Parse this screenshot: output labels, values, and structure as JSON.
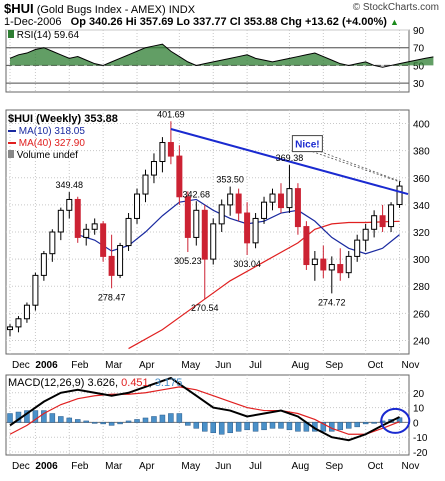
{
  "header": {
    "symbol": "$HUI",
    "index_name": "(Gold Bugs Index - AMEX)",
    "exchange": "INDX",
    "date": "1-Dec-2006",
    "open_label": "Op",
    "open": "340.26",
    "high_label": "Hi",
    "high": "357.69",
    "low_label": "Lo",
    "low": "337.77",
    "close_label": "Cl",
    "close": "353.88",
    "change_label": "Chg",
    "change": "+13.62 (+4.00%)",
    "change_icon": "up-triangle-icon",
    "watermark": "© StockCharts.com"
  },
  "colors": {
    "up": "#ffffff",
    "down": "#cc2233",
    "ma10": "#1a2aa0",
    "ma40": "#e02020",
    "trendline": "#1a2ad0",
    "rsi_fill": "#2e7d32",
    "macd": "#000000",
    "signal": "#e02020",
    "hist": "#4a90c8",
    "grid": "#c8c8c8"
  },
  "chart_data": [
    {
      "type": "line",
      "panel": "RSI",
      "legend": "RSI(14) 59.64",
      "ylim": [
        20,
        90
      ],
      "yticks": [
        30,
        50,
        70,
        90
      ],
      "reference_lines": [
        30,
        50,
        70
      ],
      "x": [
        0,
        1,
        2,
        3,
        4,
        5,
        6,
        7,
        8,
        9,
        10,
        11,
        12,
        13,
        14,
        15,
        16,
        17,
        18,
        19,
        20,
        21,
        22,
        23,
        24,
        25,
        26,
        27,
        28,
        29,
        30,
        31,
        32,
        33,
        34,
        35,
        36,
        37,
        38,
        39,
        40,
        41,
        42,
        43,
        44,
        45,
        46,
        47,
        48,
        49,
        50
      ],
      "values": [
        58,
        62,
        64,
        68,
        70,
        66,
        62,
        58,
        60,
        56,
        52,
        50,
        54,
        58,
        62,
        66,
        70,
        72,
        74,
        66,
        60,
        54,
        50,
        52,
        54,
        56,
        58,
        60,
        62,
        58,
        56,
        54,
        56,
        58,
        60,
        62,
        64,
        60,
        56,
        52,
        50,
        52,
        54,
        50,
        48,
        50,
        52,
        54,
        56,
        58,
        59.64
      ]
    },
    {
      "type": "candlestick",
      "panel": "price",
      "legend": [
        "$HUI (Weekly) 353.88",
        "MA(10) 318.05",
        "MA(40) 327.90",
        "Volume undef"
      ],
      "ylim": [
        230,
        410
      ],
      "yticks": [
        240,
        260,
        280,
        300,
        320,
        340,
        360,
        380,
        400
      ],
      "xlabels": [
        "Dec",
        "2006",
        "Feb",
        "Mar",
        "Apr",
        "May",
        "Jun",
        "Jul",
        "Aug",
        "Sep",
        "Oct",
        "Nov"
      ],
      "candles": [
        {
          "w": 0,
          "o": 248,
          "h": 252,
          "l": 243,
          "c": 250
        },
        {
          "w": 1,
          "o": 250,
          "h": 258,
          "l": 246,
          "c": 256
        },
        {
          "w": 2,
          "o": 256,
          "h": 268,
          "l": 253,
          "c": 266
        },
        {
          "w": 3,
          "o": 266,
          "h": 290,
          "l": 262,
          "c": 288
        },
        {
          "w": 4,
          "o": 288,
          "h": 306,
          "l": 284,
          "c": 304
        },
        {
          "w": 5,
          "o": 304,
          "h": 322,
          "l": 298,
          "c": 320
        },
        {
          "w": 6,
          "o": 320,
          "h": 338,
          "l": 314,
          "c": 336
        },
        {
          "w": 7,
          "o": 336,
          "h": 349.48,
          "l": 330,
          "c": 344
        },
        {
          "w": 8,
          "o": 344,
          "h": 346,
          "l": 312,
          "c": 316
        },
        {
          "w": 9,
          "o": 316,
          "h": 326,
          "l": 310,
          "c": 322
        },
        {
          "w": 10,
          "o": 322,
          "h": 330,
          "l": 318,
          "c": 326
        },
        {
          "w": 11,
          "o": 326,
          "h": 328,
          "l": 298,
          "c": 302
        },
        {
          "w": 12,
          "o": 302,
          "h": 318,
          "l": 278.47,
          "c": 288
        },
        {
          "w": 13,
          "o": 288,
          "h": 312,
          "l": 286,
          "c": 310
        },
        {
          "w": 14,
          "o": 310,
          "h": 334,
          "l": 306,
          "c": 330
        },
        {
          "w": 15,
          "o": 330,
          "h": 352,
          "l": 326,
          "c": 348
        },
        {
          "w": 16,
          "o": 348,
          "h": 366,
          "l": 342,
          "c": 362
        },
        {
          "w": 17,
          "o": 362,
          "h": 378,
          "l": 356,
          "c": 372
        },
        {
          "w": 18,
          "o": 372,
          "h": 390,
          "l": 364,
          "c": 386
        },
        {
          "w": 19,
          "o": 386,
          "h": 401.69,
          "l": 370,
          "c": 376
        },
        {
          "w": 20,
          "o": 376,
          "h": 384,
          "l": 340,
          "c": 346
        },
        {
          "w": 21,
          "o": 346,
          "h": 350,
          "l": 305.23,
          "c": 316
        },
        {
          "w": 22,
          "o": 316,
          "h": 342.68,
          "l": 310,
          "c": 336
        },
        {
          "w": 23,
          "o": 336,
          "h": 340,
          "l": 270.54,
          "c": 300
        },
        {
          "w": 24,
          "o": 300,
          "h": 330,
          "l": 296,
          "c": 326
        },
        {
          "w": 25,
          "o": 326,
          "h": 344,
          "l": 320,
          "c": 340
        },
        {
          "w": 26,
          "o": 340,
          "h": 353.5,
          "l": 332,
          "c": 348
        },
        {
          "w": 27,
          "o": 348,
          "h": 352,
          "l": 328,
          "c": 334
        },
        {
          "w": 28,
          "o": 334,
          "h": 342,
          "l": 303.04,
          "c": 312
        },
        {
          "w": 29,
          "o": 312,
          "h": 334,
          "l": 308,
          "c": 330
        },
        {
          "w": 30,
          "o": 330,
          "h": 346,
          "l": 326,
          "c": 342
        },
        {
          "w": 31,
          "o": 342,
          "h": 352,
          "l": 336,
          "c": 348
        },
        {
          "w": 32,
          "o": 348,
          "h": 356,
          "l": 334,
          "c": 338
        },
        {
          "w": 33,
          "o": 338,
          "h": 369.38,
          "l": 334,
          "c": 352
        },
        {
          "w": 34,
          "o": 352,
          "h": 356,
          "l": 318,
          "c": 324
        },
        {
          "w": 35,
          "o": 324,
          "h": 328,
          "l": 292,
          "c": 296
        },
        {
          "w": 36,
          "o": 296,
          "h": 306,
          "l": 284,
          "c": 300
        },
        {
          "w": 37,
          "o": 300,
          "h": 310,
          "l": 286,
          "c": 292
        },
        {
          "w": 38,
          "o": 292,
          "h": 302,
          "l": 274.72,
          "c": 296
        },
        {
          "w": 39,
          "o": 296,
          "h": 308,
          "l": 284,
          "c": 290
        },
        {
          "w": 40,
          "o": 290,
          "h": 306,
          "l": 286,
          "c": 302
        },
        {
          "w": 41,
          "o": 302,
          "h": 318,
          "l": 298,
          "c": 314
        },
        {
          "w": 42,
          "o": 314,
          "h": 326,
          "l": 306,
          "c": 322
        },
        {
          "w": 43,
          "o": 322,
          "h": 336,
          "l": 316,
          "c": 332
        },
        {
          "w": 44,
          "o": 332,
          "h": 340,
          "l": 320,
          "c": 324
        },
        {
          "w": 45,
          "o": 324,
          "h": 342,
          "l": 320,
          "c": 340
        },
        {
          "w": 46,
          "o": 340.26,
          "h": 357.69,
          "l": 337.77,
          "c": 353.88
        }
      ],
      "ma10": [
        [
          8,
          318
        ],
        [
          10,
          314
        ],
        [
          12,
          306
        ],
        [
          14,
          310
        ],
        [
          16,
          320
        ],
        [
          18,
          332
        ],
        [
          20,
          342
        ],
        [
          22,
          344
        ],
        [
          24,
          336
        ],
        [
          26,
          330
        ],
        [
          28,
          326
        ],
        [
          30,
          328
        ],
        [
          32,
          334
        ],
        [
          34,
          336
        ],
        [
          36,
          328
        ],
        [
          38,
          316
        ],
        [
          40,
          308
        ],
        [
          42,
          304
        ],
        [
          44,
          308
        ],
        [
          46,
          318.05
        ]
      ],
      "ma40": [
        [
          14,
          234
        ],
        [
          18,
          248
        ],
        [
          22,
          266
        ],
        [
          26,
          284
        ],
        [
          30,
          298
        ],
        [
          34,
          312
        ],
        [
          36,
          322
        ],
        [
          38,
          326
        ],
        [
          40,
          327
        ],
        [
          42,
          327
        ],
        [
          44,
          327.5
        ],
        [
          46,
          327.9
        ]
      ],
      "trendline": [
        [
          19,
          396
        ],
        [
          47,
          348
        ]
      ],
      "annotations": [
        {
          "text": "401.69",
          "w": 19,
          "y": 401.69
        },
        {
          "text": "349.48",
          "w": 7,
          "y": 349.48
        },
        {
          "text": "342.68",
          "w": 22,
          "y": 342.68
        },
        {
          "text": "353.50",
          "w": 26,
          "y": 353.5
        },
        {
          "text": "369.38",
          "w": 33,
          "y": 369.38
        },
        {
          "text": "278.47",
          "w": 12,
          "y": 278.47
        },
        {
          "text": "305.23",
          "w": 21,
          "y": 305.23
        },
        {
          "text": "303.04",
          "w": 28,
          "y": 303.04
        },
        {
          "text": "270.54",
          "w": 23,
          "y": 270.54
        },
        {
          "text": "274.72",
          "w": 38,
          "y": 274.72
        }
      ],
      "callout": "Nice!"
    },
    {
      "type": "line",
      "panel": "MACD",
      "legend_name": "MACD(12,26,9)",
      "legend_values": [
        "3.626",
        "0.451",
        "3.175"
      ],
      "ylim": [
        -22,
        32
      ],
      "yticks": [
        -20,
        -10,
        0,
        10,
        20
      ],
      "macd": [
        [
          0,
          -2
        ],
        [
          2,
          6
        ],
        [
          4,
          14
        ],
        [
          6,
          20
        ],
        [
          8,
          22
        ],
        [
          10,
          20
        ],
        [
          12,
          18
        ],
        [
          14,
          20
        ],
        [
          16,
          24
        ],
        [
          18,
          28
        ],
        [
          19,
          30
        ],
        [
          20,
          26
        ],
        [
          22,
          18
        ],
        [
          24,
          10
        ],
        [
          26,
          8
        ],
        [
          28,
          4
        ],
        [
          30,
          6
        ],
        [
          32,
          8
        ],
        [
          34,
          4
        ],
        [
          36,
          -4
        ],
        [
          38,
          -10
        ],
        [
          40,
          -12
        ],
        [
          42,
          -8
        ],
        [
          44,
          -2
        ],
        [
          46,
          3.626
        ]
      ],
      "signal": [
        [
          0,
          -8
        ],
        [
          2,
          -2
        ],
        [
          4,
          6
        ],
        [
          6,
          12
        ],
        [
          8,
          16
        ],
        [
          10,
          18
        ],
        [
          12,
          19
        ],
        [
          14,
          19
        ],
        [
          16,
          20
        ],
        [
          18,
          22
        ],
        [
          20,
          24
        ],
        [
          22,
          22
        ],
        [
          24,
          18
        ],
        [
          26,
          14
        ],
        [
          28,
          10
        ],
        [
          30,
          8
        ],
        [
          32,
          8
        ],
        [
          34,
          6
        ],
        [
          36,
          2
        ],
        [
          38,
          -4
        ],
        [
          40,
          -8
        ],
        [
          42,
          -8
        ],
        [
          44,
          -4
        ],
        [
          46,
          0.451
        ]
      ],
      "histogram": [
        6,
        7,
        8,
        8,
        8,
        6,
        4,
        3,
        2,
        1,
        0,
        -1,
        -2,
        -1,
        1,
        2,
        3,
        4,
        5,
        6,
        6,
        -2,
        -4,
        -6,
        -7,
        -8,
        -7,
        -6,
        -5,
        -6,
        -5,
        -4,
        -4,
        -5,
        -6,
        -6,
        -6,
        -6,
        -6,
        -5,
        -4,
        -3,
        -1,
        0,
        1,
        2,
        3.175
      ]
    }
  ],
  "macd_circle_icon": "highlight-circle-icon"
}
